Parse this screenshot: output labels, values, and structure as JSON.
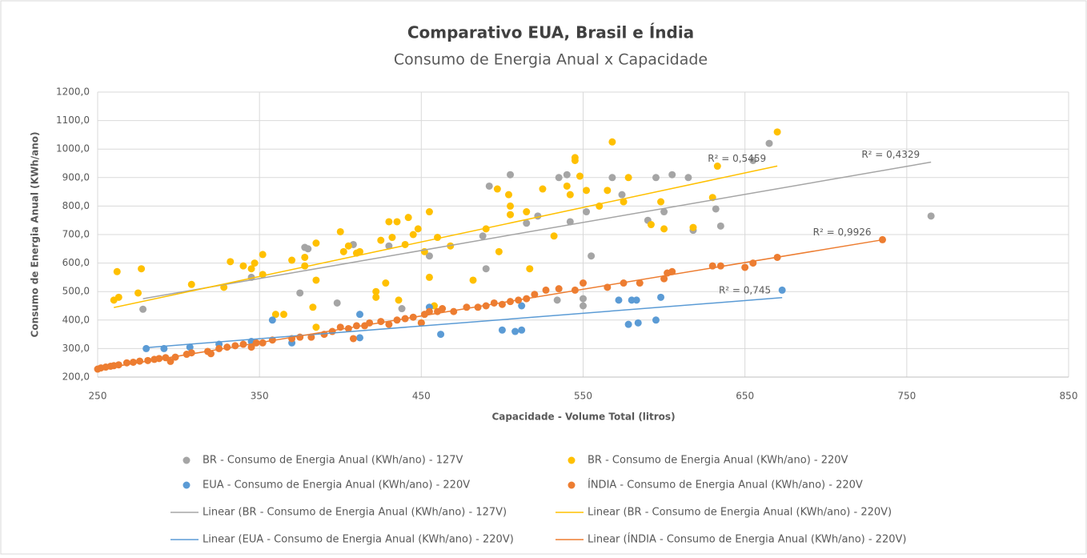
{
  "chart_data": {
    "type": "scatter",
    "title": "Comparativo EUA, Brasil e Índia",
    "subtitle": "Consumo de Energia Anual x Capacidade",
    "x_label": "Capacidade - Volume Total (litros)",
    "y_label": "Consumo de Energia Anual (KWh/ano)",
    "xlim": [
      250,
      850
    ],
    "xticks": [
      250,
      350,
      450,
      550,
      650,
      750,
      850
    ],
    "ylim": [
      200,
      1200
    ],
    "yticks": [
      {
        "value": 200,
        "label": "200,0"
      },
      {
        "value": 300,
        "label": "300,0"
      },
      {
        "value": 400,
        "label": "400,0"
      },
      {
        "value": 500,
        "label": "500,0"
      },
      {
        "value": 600,
        "label": "600,0"
      },
      {
        "value": 700,
        "label": "700,0"
      },
      {
        "value": 800,
        "label": "800,0"
      },
      {
        "value": 900,
        "label": "900,0"
      },
      {
        "value": 1000,
        "label": "1000,0"
      },
      {
        "value": 1100,
        "label": "1100,0"
      },
      {
        "value": 1200,
        "label": "1200,0"
      }
    ],
    "grid": true,
    "series": [
      {
        "name": "BR - Consumo de Energia Anual (KWh/ano) - 127V",
        "color": "#a5a5a5",
        "trendline": {
          "name": "Linear (BR - Consumo de Energia Anual (KWh/ano) - 127V)",
          "r2_label": "R² = 0,4329"
        },
        "x": [
          278,
          345,
          375,
          378,
          380,
          398,
          408,
          430,
          438,
          455,
          488,
          490,
          492,
          505,
          515,
          522,
          534,
          535,
          540,
          542,
          550,
          550,
          552,
          555,
          568,
          574,
          590,
          595,
          600,
          605,
          615,
          618,
          632,
          635,
          655,
          665,
          765
        ],
        "values": [
          438,
          550,
          495,
          655,
          650,
          460,
          665,
          660,
          440,
          625,
          695,
          580,
          870,
          910,
          740,
          765,
          470,
          900,
          910,
          745,
          450,
          475,
          780,
          625,
          900,
          840,
          750,
          900,
          780,
          910,
          900,
          715,
          790,
          730,
          960,
          1020,
          765
        ]
      },
      {
        "name": "BR - Consumo de Energia Anual (KWh/ano) - 220V",
        "color": "#ffc000",
        "trendline": {
          "name": "Linear (BR - Consumo de Energia Anual (KWh/ano) - 220V)",
          "r2_label": "R² = 0,5459"
        },
        "x": [
          260,
          262,
          263,
          275,
          277,
          308,
          328,
          332,
          340,
          345,
          347,
          352,
          352,
          360,
          365,
          370,
          378,
          378,
          383,
          385,
          385,
          385,
          400,
          402,
          405,
          410,
          412,
          422,
          422,
          425,
          428,
          430,
          432,
          435,
          436,
          440,
          442,
          445,
          448,
          450,
          452,
          455,
          455,
          458,
          460,
          468,
          482,
          490,
          497,
          498,
          504,
          505,
          505,
          515,
          517,
          525,
          532,
          540,
          542,
          545,
          545,
          548,
          552,
          560,
          565,
          568,
          575,
          578,
          592,
          598,
          600,
          618,
          630,
          633,
          670
        ],
        "values": [
          470,
          570,
          480,
          495,
          580,
          525,
          515,
          605,
          590,
          580,
          600,
          630,
          560,
          420,
          420,
          610,
          620,
          590,
          445,
          540,
          670,
          375,
          710,
          640,
          660,
          635,
          640,
          500,
          480,
          680,
          530,
          745,
          690,
          745,
          470,
          665,
          760,
          700,
          720,
          390,
          640,
          550,
          780,
          450,
          690,
          660,
          540,
          720,
          860,
          640,
          840,
          770,
          800,
          780,
          580,
          860,
          695,
          870,
          840,
          960,
          970,
          905,
          855,
          800,
          855,
          1025,
          815,
          900,
          735,
          815,
          720,
          725,
          830,
          940,
          1060
        ]
      },
      {
        "name": "EUA - Consumo de Energia Anual (KWh/ano) - 220V",
        "color": "#5b9bd5",
        "trendline": {
          "name": "Linear (EUA - Consumo de Energia Anual (KWh/ano) - 220V)",
          "r2_label": "R² = 0,745"
        },
        "x": [
          280,
          291,
          307,
          325,
          345,
          358,
          370,
          412,
          412,
          455,
          462,
          500,
          508,
          512,
          512,
          572,
          578,
          580,
          583,
          584,
          595,
          598,
          673
        ],
        "values": [
          300,
          300,
          305,
          315,
          325,
          400,
          320,
          338,
          420,
          445,
          350,
          365,
          360,
          365,
          450,
          470,
          385,
          470,
          470,
          390,
          400,
          480,
          505
        ]
      },
      {
        "name": "ÍNDIA - Consumo de Energia Anual (KWh/ano) - 220V",
        "color": "#ed7d31",
        "trendline": {
          "name": "Linear (ÍNDIA - Consumo de Energia Anual (KWh/ano) - 220V)",
          "r2_label": "R² = 0,9926"
        },
        "x": [
          250,
          252,
          255,
          258,
          260,
          263,
          268,
          272,
          276,
          281,
          285,
          288,
          292,
          295,
          298,
          305,
          308,
          318,
          320,
          325,
          330,
          335,
          340,
          345,
          348,
          352,
          358,
          370,
          375,
          382,
          390,
          395,
          400,
          405,
          408,
          410,
          415,
          418,
          425,
          430,
          435,
          440,
          445,
          450,
          452,
          455,
          460,
          463,
          470,
          478,
          485,
          490,
          495,
          500,
          505,
          510,
          515,
          520,
          527,
          535,
          545,
          550,
          565,
          575,
          585,
          600,
          602,
          605,
          630,
          635,
          650,
          655,
          670,
          735
        ],
        "values": [
          228,
          232,
          235,
          238,
          240,
          243,
          250,
          252,
          256,
          258,
          262,
          265,
          268,
          255,
          270,
          280,
          285,
          290,
          282,
          300,
          305,
          310,
          315,
          305,
          320,
          320,
          330,
          335,
          340,
          340,
          350,
          360,
          375,
          370,
          335,
          380,
          380,
          390,
          395,
          385,
          400,
          405,
          410,
          390,
          420,
          430,
          430,
          440,
          430,
          445,
          445,
          450,
          460,
          455,
          465,
          470,
          475,
          490,
          505,
          510,
          505,
          530,
          515,
          530,
          530,
          545,
          565,
          570,
          590,
          590,
          585,
          600,
          620,
          682
        ]
      }
    ]
  }
}
